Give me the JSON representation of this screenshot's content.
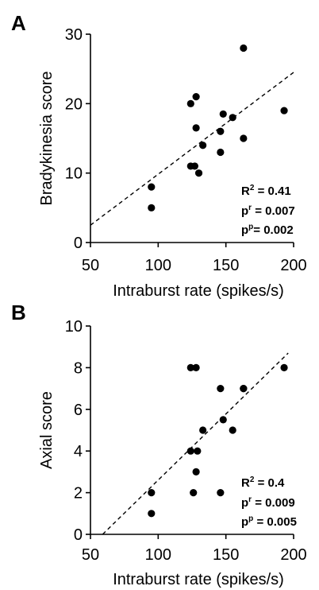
{
  "chart_data": [
    {
      "type": "scatter",
      "panel_label": "A",
      "xlabel": "Intraburst rate (spikes/s)",
      "ylabel": "Bradykinesia score",
      "xlim": [
        50,
        200
      ],
      "ylim": [
        0,
        30
      ],
      "xticks": [
        50,
        100,
        150,
        200
      ],
      "yticks": [
        0,
        10,
        20,
        30
      ],
      "points": [
        {
          "x": 95,
          "y": 8
        },
        {
          "x": 95,
          "y": 5
        },
        {
          "x": 124,
          "y": 20
        },
        {
          "x": 124,
          "y": 11
        },
        {
          "x": 127,
          "y": 11
        },
        {
          "x": 128,
          "y": 21
        },
        {
          "x": 128,
          "y": 16.5
        },
        {
          "x": 130,
          "y": 10
        },
        {
          "x": 133,
          "y": 14
        },
        {
          "x": 146,
          "y": 16
        },
        {
          "x": 146,
          "y": 13
        },
        {
          "x": 148,
          "y": 18.5
        },
        {
          "x": 155,
          "y": 18
        },
        {
          "x": 163,
          "y": 28
        },
        {
          "x": 163,
          "y": 15
        },
        {
          "x": 193,
          "y": 19
        }
      ],
      "regression": {
        "x1": 50,
        "y1": 2.5,
        "x2": 200,
        "y2": 24.5,
        "style": "dashed"
      },
      "annotations": [
        {
          "base": "R",
          "sup": "2",
          "value": " = 0.41"
        },
        {
          "base": "p",
          "sup": "r",
          "value": " = 0.007"
        },
        {
          "base": "p",
          "sup": "p",
          "value": "= 0.002"
        }
      ]
    },
    {
      "type": "scatter",
      "panel_label": "B",
      "xlabel": "Intraburst rate (spikes/s)",
      "ylabel": "Axial score",
      "xlim": [
        50,
        200
      ],
      "ylim": [
        0,
        10
      ],
      "xticks": [
        50,
        100,
        150,
        200
      ],
      "yticks": [
        0,
        2,
        4,
        6,
        8,
        10
      ],
      "points": [
        {
          "x": 95,
          "y": 2
        },
        {
          "x": 95,
          "y": 1
        },
        {
          "x": 124,
          "y": 8
        },
        {
          "x": 128,
          "y": 8
        },
        {
          "x": 124,
          "y": 4
        },
        {
          "x": 129,
          "y": 4
        },
        {
          "x": 133,
          "y": 5
        },
        {
          "x": 128,
          "y": 3
        },
        {
          "x": 126,
          "y": 2
        },
        {
          "x": 146,
          "y": 7
        },
        {
          "x": 146,
          "y": 2
        },
        {
          "x": 148,
          "y": 5.5
        },
        {
          "x": 155,
          "y": 5
        },
        {
          "x": 163,
          "y": 7
        },
        {
          "x": 163,
          "y": 7
        },
        {
          "x": 193,
          "y": 8
        }
      ],
      "regression": {
        "x1": 59,
        "y1": 0,
        "x2": 196,
        "y2": 8.7,
        "style": "dashed"
      },
      "annotations": [
        {
          "base": "R",
          "sup": "2",
          "value": " = 0.4"
        },
        {
          "base": "p",
          "sup": "r",
          "value": " = 0.009"
        },
        {
          "base": "p",
          "sup": "p",
          "value": " = 0.005"
        }
      ]
    }
  ]
}
